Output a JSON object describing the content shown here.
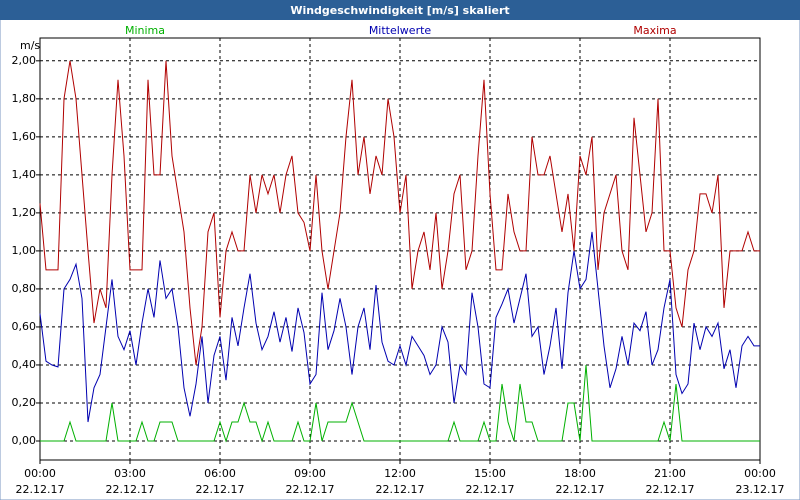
{
  "chart_data": {
    "type": "line",
    "title": "Windgeschwindigkeit [m/s] skaliert",
    "y_unit": "m/s",
    "x": [
      0,
      0.2,
      0.4,
      0.6,
      0.8,
      1,
      1.2,
      1.4,
      1.6,
      1.8,
      2,
      2.2,
      2.4,
      2.6,
      2.8,
      3,
      3.2,
      3.4,
      3.6,
      3.8,
      4,
      4.2,
      4.4,
      4.6,
      4.8,
      5,
      5.2,
      5.4,
      5.6,
      5.8,
      6,
      6.2,
      6.4,
      6.6,
      6.8,
      7,
      7.2,
      7.4,
      7.6,
      7.8,
      8,
      8.2,
      8.4,
      8.6,
      8.8,
      9,
      9.2,
      9.4,
      9.6,
      9.8,
      10,
      10.2,
      10.4,
      10.6,
      10.8,
      11,
      11.2,
      11.4,
      11.6,
      11.8,
      12,
      12.2,
      12.4,
      12.6,
      12.8,
      13,
      13.2,
      13.4,
      13.6,
      13.8,
      14,
      14.2,
      14.4,
      14.6,
      14.8,
      15,
      15.2,
      15.4,
      15.6,
      15.8,
      16,
      16.2,
      16.4,
      16.6,
      16.8,
      17,
      17.2,
      17.4,
      17.6,
      17.8,
      18,
      18.2,
      18.4,
      18.6,
      18.8,
      19,
      19.2,
      19.4,
      19.6,
      19.8,
      20,
      20.2,
      20.4,
      20.6,
      20.8,
      21,
      21.2,
      21.4,
      21.6,
      21.8,
      22,
      22.2,
      22.4,
      22.6,
      22.8,
      23,
      23.2,
      23.4,
      23.6,
      23.8,
      24
    ],
    "series": [
      {
        "name": "Minima",
        "color": "#00b000",
        "values": [
          0,
          0,
          0,
          0,
          0,
          0.1,
          0,
          0,
          0,
          0,
          0,
          0,
          0.2,
          0,
          0,
          0,
          0,
          0.1,
          0,
          0,
          0.1,
          0.1,
          0.1,
          0,
          0,
          0,
          0,
          0,
          0,
          0,
          0.1,
          0,
          0.1,
          0.1,
          0.2,
          0.1,
          0.1,
          0,
          0.1,
          0,
          0,
          0,
          0,
          0.1,
          0,
          0,
          0.2,
          0,
          0.1,
          0.1,
          0.1,
          0.1,
          0.2,
          0.1,
          0,
          0,
          0,
          0,
          0,
          0,
          0,
          0,
          0,
          0,
          0,
          0,
          0,
          0,
          0,
          0.1,
          0,
          0,
          0,
          0,
          0.1,
          0,
          0,
          0.3,
          0.1,
          0,
          0.3,
          0.1,
          0.1,
          0,
          0,
          0,
          0,
          0,
          0.2,
          0.2,
          0,
          0.4,
          0,
          0,
          0,
          0,
          0,
          0,
          0,
          0,
          0,
          0,
          0,
          0,
          0.1,
          0,
          0.3,
          0,
          0,
          0,
          0,
          0,
          0,
          0,
          0,
          0,
          0,
          0,
          0,
          0,
          0
        ]
      },
      {
        "name": "Mittelwerte",
        "color": "#0000b0",
        "values": [
          0.67,
          0.42,
          0.4,
          0.39,
          0.8,
          0.85,
          0.93,
          0.75,
          0.1,
          0.28,
          0.35,
          0.6,
          0.85,
          0.55,
          0.48,
          0.58,
          0.4,
          0.62,
          0.8,
          0.65,
          0.95,
          0.75,
          0.8,
          0.6,
          0.28,
          0.13,
          0.3,
          0.55,
          0.2,
          0.45,
          0.55,
          0.32,
          0.65,
          0.5,
          0.7,
          0.88,
          0.62,
          0.48,
          0.55,
          0.68,
          0.52,
          0.65,
          0.47,
          0.7,
          0.57,
          0.3,
          0.35,
          0.78,
          0.48,
          0.58,
          0.75,
          0.6,
          0.35,
          0.6,
          0.7,
          0.48,
          0.82,
          0.52,
          0.42,
          0.4,
          0.5,
          0.4,
          0.55,
          0.5,
          0.45,
          0.35,
          0.4,
          0.6,
          0.52,
          0.2,
          0.4,
          0.35,
          0.78,
          0.6,
          0.3,
          0.28,
          0.65,
          0.72,
          0.8,
          0.62,
          0.75,
          0.88,
          0.55,
          0.6,
          0.35,
          0.5,
          0.7,
          0.38,
          0.78,
          1.0,
          0.8,
          0.85,
          1.1,
          0.8,
          0.5,
          0.28,
          0.38,
          0.55,
          0.4,
          0.62,
          0.58,
          0.68,
          0.4,
          0.48,
          0.7,
          0.85,
          0.35,
          0.25,
          0.3,
          0.62,
          0.48,
          0.6,
          0.55,
          0.62,
          0.38,
          0.48,
          0.28,
          0.5,
          0.55,
          0.5,
          0.5
        ]
      },
      {
        "name": "Maxima",
        "color": "#b00000",
        "values": [
          1.25,
          0.9,
          0.9,
          0.9,
          1.8,
          2.0,
          1.8,
          1.4,
          1.0,
          0.62,
          0.8,
          0.7,
          1.4,
          1.9,
          1.5,
          0.9,
          0.9,
          0.9,
          1.9,
          1.4,
          1.4,
          2.0,
          1.5,
          1.3,
          1.1,
          0.7,
          0.4,
          0.6,
          1.1,
          1.2,
          0.65,
          1.0,
          1.1,
          1.0,
          1.0,
          1.4,
          1.2,
          1.4,
          1.3,
          1.4,
          1.2,
          1.4,
          1.5,
          1.2,
          1.15,
          1.0,
          1.4,
          1.0,
          0.8,
          1.0,
          1.2,
          1.6,
          1.9,
          1.4,
          1.6,
          1.3,
          1.5,
          1.4,
          1.8,
          1.6,
          1.2,
          1.4,
          0.8,
          1.0,
          1.1,
          0.9,
          1.2,
          0.8,
          1.0,
          1.3,
          1.4,
          0.9,
          1.0,
          1.5,
          1.9,
          1.3,
          0.9,
          0.9,
          1.3,
          1.1,
          1.0,
          1.0,
          1.6,
          1.4,
          1.4,
          1.5,
          1.3,
          1.1,
          1.3,
          1.0,
          1.5,
          1.4,
          1.6,
          0.9,
          1.2,
          1.3,
          1.4,
          1.0,
          0.9,
          1.7,
          1.4,
          1.1,
          1.2,
          1.8,
          1.0,
          1.0,
          0.7,
          0.6,
          0.9,
          1.0,
          1.3,
          1.3,
          1.2,
          1.4,
          0.7,
          1.0,
          1.0,
          1.0,
          1.1,
          1.0,
          1.0
        ]
      }
    ],
    "xlim": [
      0,
      24
    ],
    "xticks": [
      {
        "value": 0,
        "label": "00:00",
        "date": "22.12.17"
      },
      {
        "value": 3,
        "label": "03:00",
        "date": "22.12.17"
      },
      {
        "value": 6,
        "label": "06:00",
        "date": "22.12.17"
      },
      {
        "value": 9,
        "label": "09:00",
        "date": "22.12.17"
      },
      {
        "value": 12,
        "label": "12:00",
        "date": "22.12.17"
      },
      {
        "value": 15,
        "label": "15:00",
        "date": "22.12.17"
      },
      {
        "value": 18,
        "label": "18:00",
        "date": "22.12.17"
      },
      {
        "value": 21,
        "label": "21:00",
        "date": "22.12.17"
      },
      {
        "value": 24,
        "label": "00:00",
        "date": "23.12.17"
      }
    ],
    "ylim": [
      -0.1,
      2.12
    ],
    "yticks": [
      {
        "value": 0,
        "label": "0,00"
      },
      {
        "value": 0.2,
        "label": "0,20"
      },
      {
        "value": 0.4,
        "label": "0,40"
      },
      {
        "value": 0.6,
        "label": "0,60"
      },
      {
        "value": 0.8,
        "label": "0,80"
      },
      {
        "value": 1,
        "label": "1,00"
      },
      {
        "value": 1.2,
        "label": "1,20"
      },
      {
        "value": 1.4,
        "label": "1,40"
      },
      {
        "value": 1.6,
        "label": "1,60"
      },
      {
        "value": 1.8,
        "label": "1,80"
      },
      {
        "value": 2,
        "label": "2,00"
      }
    ],
    "grid": true
  }
}
